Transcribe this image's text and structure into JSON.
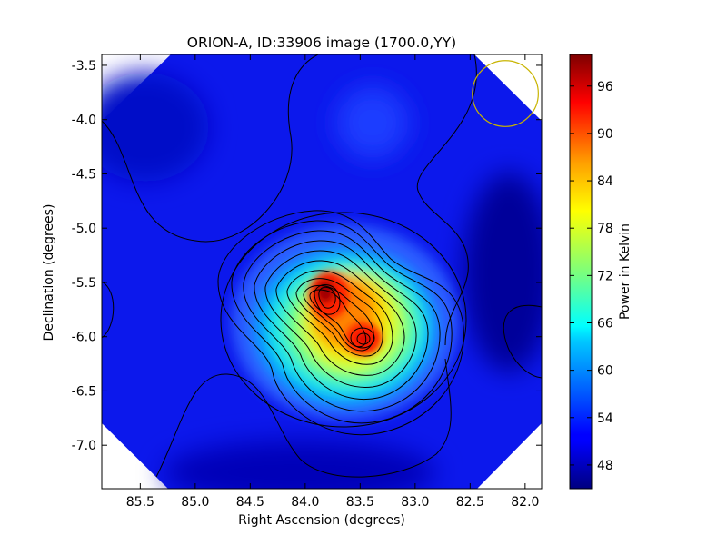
{
  "chart_data": {
    "type": "heatmap",
    "title": "ORION-A, ID:33906 image (1700.0,YY)",
    "xlabel": "Right Ascension (degrees)",
    "ylabel": "Declination (degrees)",
    "xlim": [
      85.85,
      81.85
    ],
    "ylim": [
      -7.4,
      -3.4
    ],
    "x_ticks": [
      "85.5",
      "85.0",
      "84.5",
      "84.0",
      "83.5",
      "83.0",
      "82.5",
      "82.0"
    ],
    "x_tick_values": [
      85.5,
      85.0,
      84.5,
      84.0,
      83.5,
      83.0,
      82.5,
      82.0
    ],
    "y_ticks": [
      "-3.5",
      "-4.0",
      "-4.5",
      "-5.0",
      "-5.5",
      "-6.0",
      "-6.5",
      "-7.0"
    ],
    "y_tick_values": [
      -3.5,
      -4.0,
      -4.5,
      -5.0,
      -5.5,
      -6.0,
      -6.5,
      -7.0
    ],
    "colorbar": {
      "label": "Power in Kelvin",
      "range": [
        45,
        100
      ],
      "ticks": [
        "48",
        "54",
        "60",
        "66",
        "72",
        "78",
        "84",
        "90",
        "96"
      ],
      "tick_values": [
        48,
        54,
        60,
        66,
        72,
        78,
        84,
        90,
        96
      ],
      "colormap": "jet"
    },
    "peaks": [
      {
        "ra": 83.82,
        "dec": -5.6,
        "power": 98
      },
      {
        "ra": 83.43,
        "dec": -6.02,
        "power": 92
      }
    ],
    "beam": {
      "ra": 82.18,
      "dec": -3.76,
      "radius_deg": 0.3,
      "color": "#c8b400"
    },
    "grid": false
  }
}
